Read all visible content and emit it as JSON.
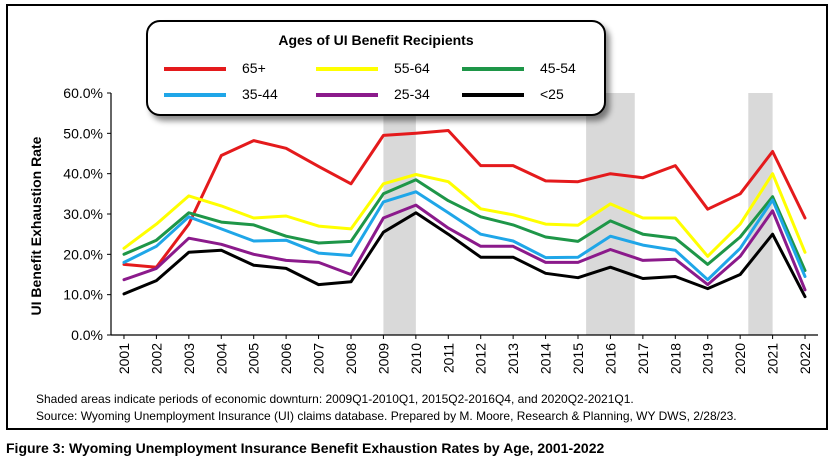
{
  "caption": "Figure 3: Wyoming Unemployment Insurance Benefit Exhaustion Rates by Age, 2001-2022",
  "notes": {
    "shaded": "Shaded areas indicate periods of economic downturn: 2009Q1-2010Q1, 2015Q2-2016Q4, and 2020Q2-2021Q1.",
    "source": "Source: Wyoming Unemployment Insurance (UI) claims database. Prepared by M. Moore, Research & Planning, WY DWS, 2/28/23."
  },
  "chart_data": {
    "type": "line",
    "title": "",
    "ylabel": "UI Benefit Exhaustion Rate",
    "xlabel": "",
    "legend_title": "Ages of UI Benefit Recipients",
    "legend_placement": "top",
    "ylim": [
      0,
      60
    ],
    "yticks": [
      "0.0%",
      "10.0%",
      "20.0%",
      "30.0%",
      "40.0%",
      "50.0%",
      "60.0%"
    ],
    "grid": false,
    "x": [
      "2001",
      "2002",
      "2003",
      "2004",
      "2005",
      "2006",
      "2007",
      "2008",
      "2009",
      "2010",
      "2011",
      "2012",
      "2013",
      "2014",
      "2015",
      "2016",
      "2017",
      "2018",
      "2019",
      "2020",
      "2021",
      "2022"
    ],
    "shaded_periods": [
      {
        "start": 2009.0,
        "end": 2010.0
      },
      {
        "start": 2015.25,
        "end": 2016.75
      },
      {
        "start": 2020.25,
        "end": 2021.0
      }
    ],
    "series": [
      {
        "name": "65+",
        "color": "#e41a1c",
        "values": [
          17.5,
          16.8,
          27.5,
          44.5,
          48.2,
          46.3,
          41.8,
          37.5,
          49.5,
          50.0,
          50.7,
          42.0,
          42.0,
          38.2,
          38.0,
          40.0,
          39.0,
          42.0,
          31.2,
          35.0,
          45.5,
          29.0
        ]
      },
      {
        "name": "55-64",
        "color": "#ffff00",
        "values": [
          21.5,
          27.5,
          34.5,
          32.0,
          29.0,
          29.5,
          27.0,
          26.3,
          37.5,
          39.8,
          38.0,
          31.3,
          29.8,
          27.5,
          27.2,
          32.5,
          29.0,
          29.0,
          19.5,
          27.5,
          40.0,
          20.5
        ]
      },
      {
        "name": "45-54",
        "color": "#1e9648",
        "values": [
          20.0,
          23.5,
          30.3,
          28.0,
          27.3,
          24.5,
          22.8,
          23.2,
          35.0,
          38.5,
          33.3,
          29.3,
          27.3,
          24.3,
          23.2,
          28.3,
          25.0,
          24.0,
          17.5,
          24.3,
          34.3,
          16.0
        ]
      },
      {
        "name": "35-44",
        "color": "#1fa6e8",
        "values": [
          18.0,
          22.0,
          29.3,
          26.3,
          23.3,
          23.5,
          20.3,
          19.7,
          33.0,
          35.5,
          30.3,
          25.0,
          23.3,
          19.2,
          19.3,
          24.5,
          22.3,
          21.0,
          13.7,
          21.5,
          33.5,
          14.5
        ]
      },
      {
        "name": "25-34",
        "color": "#8b1a8b",
        "values": [
          13.7,
          16.5,
          24.0,
          22.5,
          20.0,
          18.5,
          18.0,
          15.0,
          29.0,
          32.2,
          26.5,
          22.0,
          22.0,
          18.0,
          18.0,
          21.2,
          18.5,
          18.8,
          12.5,
          19.5,
          30.8,
          11.2
        ]
      },
      {
        "name": "<25",
        "color": "#000000",
        "values": [
          10.2,
          13.5,
          20.5,
          21.0,
          17.3,
          16.5,
          12.5,
          13.2,
          25.5,
          30.3,
          25.0,
          19.3,
          19.3,
          15.3,
          14.2,
          16.8,
          14.0,
          14.5,
          11.5,
          15.0,
          25.0,
          9.5
        ]
      }
    ]
  }
}
